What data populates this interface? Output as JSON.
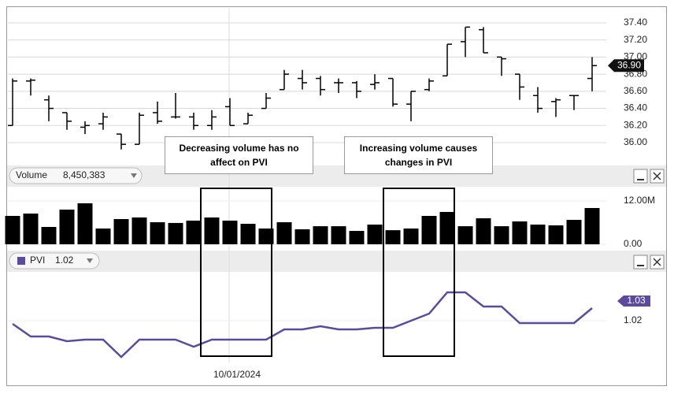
{
  "chart_data": [
    {
      "type": "ohlc",
      "categories": [
        null,
        null,
        null,
        null,
        null,
        null,
        null,
        null,
        null,
        null,
        null,
        null,
        null,
        null,
        null,
        null,
        null,
        null,
        null,
        null,
        null,
        null,
        null,
        null,
        null,
        null,
        null,
        null,
        null,
        null,
        null,
        null,
        null
      ],
      "open": [
        36.2,
        36.72,
        36.5,
        36.35,
        36.18,
        36.22,
        36.1,
        35.98,
        36.35,
        36.3,
        36.3,
        36.2,
        36.42,
        36.22,
        36.4,
        36.62,
        36.75,
        36.75,
        36.7,
        36.7,
        36.68,
        36.75,
        36.45,
        36.62,
        36.78,
        37.18,
        37.32,
        37.0,
        36.8,
        36.55,
        36.48,
        36.55,
        36.75
      ],
      "high": [
        36.75,
        36.75,
        36.55,
        36.35,
        36.25,
        36.35,
        36.1,
        36.35,
        36.48,
        36.58,
        36.35,
        36.38,
        36.52,
        36.35,
        36.58,
        36.85,
        36.85,
        36.78,
        36.75,
        36.72,
        36.8,
        36.75,
        36.6,
        36.75,
        37.15,
        37.35,
        37.35,
        37.0,
        36.8,
        36.65,
        36.52,
        36.55,
        37.0
      ],
      "low": [
        36.2,
        36.55,
        36.25,
        36.15,
        36.1,
        36.15,
        35.92,
        35.98,
        36.22,
        36.28,
        36.15,
        36.15,
        36.2,
        36.22,
        36.4,
        36.62,
        36.62,
        36.55,
        36.58,
        36.52,
        36.62,
        36.42,
        36.25,
        36.6,
        36.78,
        37.0,
        37.05,
        36.78,
        36.5,
        36.35,
        36.3,
        36.38,
        36.6
      ],
      "close": [
        36.72,
        36.73,
        36.4,
        36.25,
        36.2,
        36.3,
        35.98,
        36.32,
        36.25,
        36.3,
        36.2,
        36.3,
        36.2,
        36.32,
        36.52,
        36.8,
        36.7,
        36.62,
        36.7,
        36.6,
        36.7,
        36.45,
        36.6,
        36.72,
        37.15,
        37.35,
        37.05,
        36.98,
        36.65,
        36.4,
        36.5,
        36.55,
        36.9
      ],
      "color": "#000000",
      "ylim": [
        35.8,
        37.55
      ],
      "yticks": [
        {
          "value": 36.0,
          "label": "36.00"
        },
        {
          "value": 36.2,
          "label": "36.20"
        },
        {
          "value": 36.4,
          "label": "36.40"
        },
        {
          "value": 36.6,
          "label": "36.60"
        },
        {
          "value": 36.8,
          "label": "36.80"
        },
        {
          "value": 37.0,
          "label": "37.00"
        },
        {
          "value": 37.2,
          "label": "37.20"
        },
        {
          "value": 37.4,
          "label": "37.40"
        }
      ],
      "grid": true,
      "last_value": 36.9,
      "last_value_label": "36.90",
      "annotations": [
        "Decreasing volume has no affect on PVI",
        "Increasing volume causes changes in PVI"
      ]
    },
    {
      "type": "bar",
      "name": "Volume",
      "header_value": "8,450,383",
      "categories": [
        null,
        null,
        null,
        null,
        null,
        null,
        null,
        null,
        null,
        null,
        null,
        null,
        null,
        null,
        null,
        null,
        null,
        null,
        null,
        null,
        null,
        null,
        null,
        null,
        null,
        null,
        null,
        null,
        null,
        null,
        null,
        null,
        null
      ],
      "values": [
        7850000,
        8500000,
        4800000,
        9600000,
        11350000,
        4360000,
        6980000,
        7420000,
        6100000,
        5900000,
        6550000,
        7420000,
        6550000,
        5670000,
        4360000,
        6100000,
        4150000,
        5000000,
        5000000,
        3700000,
        5450000,
        3900000,
        4360000,
        7850000,
        8950000,
        5000000,
        7200000,
        5000000,
        6330000,
        5450000,
        5240000,
        6760000,
        10040000
      ],
      "color": "#000000",
      "ylim": [
        0,
        13000000
      ],
      "yticks": [
        {
          "value": 12000000,
          "label": "12.00M"
        },
        {
          "value": 0,
          "label": "0.00"
        }
      ]
    },
    {
      "type": "line",
      "name": "PVI",
      "header_value": "1.02",
      "categories": [
        null,
        null,
        null,
        null,
        null,
        null,
        null,
        null,
        null,
        null,
        null,
        null,
        null,
        null,
        null,
        null,
        null,
        null,
        null,
        null,
        null,
        null,
        null,
        null,
        null,
        null,
        null,
        null,
        null,
        null,
        null,
        null,
        null
      ],
      "values": [
        1.0184,
        1.012,
        1.012,
        1.0096,
        1.0104,
        1.0104,
        1.0016,
        1.0104,
        1.0104,
        1.0104,
        1.0068,
        1.0104,
        1.0104,
        1.0104,
        1.0104,
        1.0156,
        1.0156,
        1.0172,
        1.0156,
        1.0156,
        1.0164,
        1.0164,
        1.02,
        1.0236,
        1.0344,
        1.0344,
        1.0272,
        1.0272,
        1.0188,
        1.0188,
        1.0188,
        1.0188,
        1.0264
      ],
      "color": "#5b4a9e",
      "ylim": [
        1.0,
        1.045
      ],
      "yticks": [
        1.02
      ],
      "last_value": 1.03
    }
  ],
  "crosshair_date": "10/01/2024"
}
